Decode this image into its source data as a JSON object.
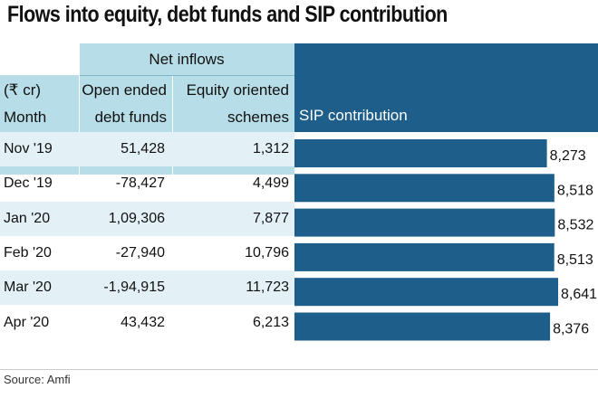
{
  "title": "Flows into equity, debt funds and SIP contribution",
  "header": {
    "net_inflows": "Net inflows",
    "unit": "(₹ cr)",
    "month": "Month",
    "debt_line1": "Open ended",
    "debt_line2": "debt funds",
    "equity_line1": "Equity oriented",
    "equity_line2": "schemes",
    "sip": "SIP contribution"
  },
  "source": "Source: Amfi",
  "colors": {
    "bar": "#1d5f8a",
    "header_bg": "#b7dde8",
    "row_alt": "#e3f1f6"
  },
  "chart_data": {
    "type": "table",
    "title": "Flows into equity, debt funds and SIP contribution",
    "unit": "₹ cr",
    "columns": [
      "Month",
      "Open ended debt funds",
      "Equity oriented schemes",
      "SIP contribution"
    ],
    "rows": [
      {
        "month": "Nov '19",
        "debt": "51,428",
        "equity": "1,312",
        "sip": 8273,
        "sip_label": "8,273"
      },
      {
        "month": "Dec '19",
        "debt": "-78,427",
        "equity": "4,499",
        "sip": 8518,
        "sip_label": "8,518"
      },
      {
        "month": "Jan '20",
        "debt": "1,09,306",
        "equity": "7,877",
        "sip": 8532,
        "sip_label": "8,532"
      },
      {
        "month": "Feb '20",
        "debt": "-27,940",
        "equity": "10,796",
        "sip": 8513,
        "sip_label": "8,513"
      },
      {
        "month": "Mar '20",
        "debt": "-1,94,915",
        "equity": "11,723",
        "sip": 8641,
        "sip_label": "8,641"
      },
      {
        "month": "Apr '20",
        "debt": "43,432",
        "equity": "6,213",
        "sip": 8376,
        "sip_label": "8,376"
      }
    ]
  }
}
